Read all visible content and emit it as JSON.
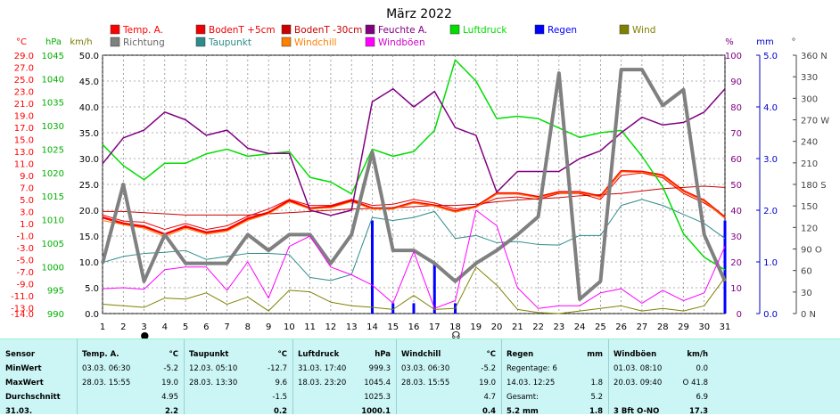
{
  "chart_data": {
    "type": "line",
    "title": "März 2022",
    "x": [
      1,
      2,
      3,
      4,
      5,
      6,
      7,
      8,
      9,
      10,
      11,
      12,
      13,
      14,
      15,
      16,
      17,
      18,
      19,
      20,
      21,
      22,
      23,
      24,
      25,
      26,
      27,
      28,
      29,
      30,
      31
    ],
    "x_range": [
      1,
      31
    ],
    "grid": true,
    "axes": {
      "temp": {
        "label": "°C",
        "range": [
          -14,
          29
        ],
        "ticks": [
          "29.0",
          "27.0",
          "25.0",
          "23.0",
          "21.0",
          "19.0",
          "17.0",
          "15.0",
          "13.0",
          "11.0",
          "9.0",
          "7.0",
          "5.0",
          "3.0",
          "1.0",
          "-1.0",
          "-3.0",
          "-5.0",
          "-7.0",
          "-9.0",
          "-11.0",
          "-13.0",
          "-14.0"
        ],
        "color": "#ff0000"
      },
      "pressure": {
        "label": "hPa",
        "range": [
          990,
          1045
        ],
        "ticks": [
          "1045",
          "1040",
          "1035",
          "1030",
          "1025",
          "1020",
          "1015",
          "1010",
          "1005",
          "1000",
          "995",
          "990"
        ],
        "color": "#00b000"
      },
      "wind": {
        "label": "km/h",
        "range": [
          0,
          50
        ],
        "ticks": [
          "50.0",
          "45.0",
          "40.0",
          "35.0",
          "30.0",
          "25.0",
          "20.0",
          "15.0",
          "10.0",
          "5.0",
          "0.0"
        ],
        "color": "#7a7a00"
      },
      "humidity": {
        "label": "%",
        "range": [
          0,
          100
        ],
        "ticks": [
          "100",
          "90",
          "80",
          "70",
          "60",
          "50",
          "40",
          "30",
          "20",
          "10",
          "0"
        ],
        "color": "#800080"
      },
      "rain": {
        "label": "mm",
        "range": [
          0,
          5
        ],
        "ticks": [
          "5.0",
          "4.0",
          "3.0",
          "2.0",
          "1.0",
          "0.0"
        ],
        "color": "#0000cc"
      },
      "direction": {
        "label": "°",
        "range": [
          0,
          360
        ],
        "ticks": [
          "360 N",
          "330",
          "300",
          "270 W",
          "240",
          "210",
          "180 S",
          "150",
          "120",
          "90 O",
          "60",
          "30",
          "0 N"
        ],
        "color": "#444444"
      }
    },
    "legend": [
      {
        "name": "Temp. A.",
        "color": "#ff0000"
      },
      {
        "name": "Richtung",
        "color": "#808080"
      },
      {
        "name": "BodenT +5cm",
        "color": "#ee0000"
      },
      {
        "name": "Taupunkt",
        "color": "#2e8b8b"
      },
      {
        "name": "BodenT -30cm",
        "color": "#cc0000"
      },
      {
        "name": "Windchill",
        "color": "#ff8000"
      },
      {
        "name": "Feuchte A.",
        "color": "#800080"
      },
      {
        "name": "Windböen",
        "color": "#ff00ff"
      },
      {
        "name": "Luftdruck",
        "color": "#00dd00"
      },
      {
        "name": "Regen",
        "color": "#0000ff"
      },
      {
        "name": "Wind",
        "color": "#808000"
      }
    ],
    "series": [
      {
        "name": "Temp. A.",
        "axis": "temp",
        "color": "#ff0000",
        "width": 2.5,
        "values": [
          2.0,
          1.0,
          0.5,
          -0.8,
          0.5,
          -0.5,
          0.0,
          1.8,
          2.8,
          4.8,
          3.5,
          3.8,
          4.8,
          3.5,
          3.5,
          4.5,
          4.0,
          3.0,
          3.8,
          6.0,
          6.0,
          5.4,
          6.2,
          6.2,
          5.5,
          9.7,
          9.6,
          9.0,
          6.4,
          4.8,
          2.0
        ]
      },
      {
        "name": "BodenT +5cm",
        "axis": "temp",
        "color": "#ee0000",
        "width": 1,
        "values": [
          2.4,
          1.4,
          1.2,
          0.0,
          1.0,
          0.0,
          0.6,
          2.2,
          3.4,
          5.0,
          4.0,
          4.0,
          5.0,
          4.0,
          4.2,
          5.0,
          4.4,
          3.4,
          3.8,
          5.2,
          5.4,
          5.0,
          6.0,
          6.0,
          5.0,
          9.0,
          9.4,
          8.6,
          6.0,
          4.4,
          2.2
        ]
      },
      {
        "name": "BodenT -30cm",
        "axis": "temp",
        "color": "#cc0000",
        "width": 1,
        "values": [
          3.0,
          3.0,
          2.8,
          2.6,
          2.4,
          2.4,
          2.4,
          2.4,
          2.6,
          2.8,
          3.0,
          3.2,
          3.4,
          3.5,
          3.6,
          3.8,
          4.0,
          4.0,
          4.2,
          4.6,
          4.9,
          5.1,
          5.3,
          5.6,
          5.8,
          6.0,
          6.4,
          6.8,
          7.0,
          7.2,
          7.0
        ]
      },
      {
        "name": "Taupunkt",
        "axis": "temp",
        "color": "#2e8b8b",
        "width": 1,
        "values": [
          -5.5,
          -4.5,
          -4.0,
          -3.8,
          -3.5,
          -5.0,
          -4.5,
          -4.0,
          -4.0,
          -4.2,
          -8.0,
          -8.5,
          -7.5,
          2.0,
          1.5,
          2.0,
          3.0,
          -1.5,
          -1.0,
          -2.2,
          -2.0,
          -2.5,
          -2.6,
          -1.0,
          -1.0,
          4.0,
          5.0,
          4.0,
          2.5,
          1.0,
          -1.5
        ]
      },
      {
        "name": "Windchill",
        "axis": "temp",
        "color": "#ff8000",
        "width": 1,
        "values": [
          1.5,
          0.8,
          0.2,
          -1.2,
          0.2,
          -0.8,
          -0.3,
          1.5,
          2.6,
          4.6,
          3.4,
          3.6,
          4.6,
          3.4,
          3.4,
          4.4,
          3.9,
          2.9,
          3.7,
          5.9,
          5.9,
          5.3,
          6.1,
          6.1,
          5.4,
          9.6,
          9.5,
          8.9,
          6.3,
          4.7,
          1.9
        ]
      },
      {
        "name": "Luftdruck",
        "axis": "pressure",
        "color": "#00dd00",
        "width": 1.5,
        "values": [
          1026,
          1021.5,
          1018.5,
          1022,
          1022,
          1024,
          1025,
          1023.5,
          1024,
          1024.5,
          1019,
          1018,
          1015.5,
          1025,
          1023.5,
          1024.5,
          1029,
          1044,
          1039.5,
          1031.5,
          1032,
          1031.5,
          1029.5,
          1027.5,
          1028.5,
          1029,
          1023.5,
          1017,
          1007,
          1002,
          999.3
        ]
      },
      {
        "name": "Feuchte A.",
        "axis": "humidity",
        "color": "#800080",
        "width": 1.5,
        "values": [
          58,
          68,
          71,
          78,
          75,
          69,
          71,
          64,
          62,
          62,
          40,
          38,
          40,
          82,
          87,
          80,
          86,
          72,
          69,
          47,
          55,
          55,
          55,
          60,
          63,
          70,
          76,
          73,
          74,
          78,
          87
        ]
      },
      {
        "name": "Richtung",
        "axis": "direction",
        "color": "#808080",
        "width": 4,
        "values": [
          70,
          180,
          45,
          110,
          70,
          70,
          70,
          110,
          88,
          110,
          110,
          70,
          110,
          225,
          88,
          88,
          70,
          45,
          70,
          88,
          110,
          135,
          335,
          20,
          45,
          340,
          340,
          290,
          312,
          110,
          45
        ]
      },
      {
        "name": "Windböen",
        "axis": "wind",
        "color": "#ff00ff",
        "width": 1,
        "values": [
          4.8,
          5.0,
          4.7,
          8.5,
          9.0,
          9.0,
          4.5,
          10.0,
          3.0,
          13.0,
          15.0,
          9.0,
          7.5,
          5.5,
          2.0,
          12.0,
          1.0,
          2.5,
          20.0,
          17.0,
          5.0,
          1.0,
          1.5,
          1.5,
          4.0,
          4.8,
          2.0,
          4.5,
          2.5,
          4.0,
          13.0
        ]
      },
      {
        "name": "Wind",
        "axis": "wind",
        "color": "#808000",
        "width": 1,
        "values": [
          1.8,
          1.5,
          1.2,
          3.0,
          2.8,
          4.0,
          1.8,
          3.2,
          0.5,
          4.5,
          4.2,
          2.2,
          1.5,
          1.2,
          0.8,
          3.5,
          0.8,
          1.0,
          9.0,
          5.5,
          0.8,
          0.2,
          0.0,
          0.5,
          1.0,
          1.5,
          0.5,
          1.0,
          0.5,
          1.5,
          7.0
        ]
      }
    ],
    "rain_bars": {
      "name": "Regen",
      "axis": "rain",
      "color": "#0000ff",
      "x": [
        14,
        15,
        16,
        17,
        18,
        31
      ],
      "values": [
        1.8,
        0.2,
        0.2,
        1.0,
        0.2,
        1.8
      ]
    },
    "markers": [
      {
        "x": 3,
        "symbol": "●"
      },
      {
        "x": 18,
        "symbol": "☊"
      }
    ]
  },
  "stats": {
    "sections": [
      {
        "header": "Sensor",
        "unit": "",
        "rows": [
          "MinWert",
          "MaxWert",
          "Durchschnitt",
          "31.03."
        ]
      },
      {
        "header": "Temp. A.",
        "unit": "°C",
        "rows": [
          [
            "03.03. 06:30",
            "-5.2"
          ],
          [
            "28.03. 15:55",
            "19.0"
          ],
          [
            "",
            "4.95"
          ],
          [
            "",
            "2.2"
          ]
        ]
      },
      {
        "header": "Taupunkt",
        "unit": "°C",
        "rows": [
          [
            "12.03. 05:10",
            "-12.7"
          ],
          [
            "28.03. 13:30",
            "9.6"
          ],
          [
            "",
            "-1.5"
          ],
          [
            "",
            "0.2"
          ]
        ]
      },
      {
        "header": "Luftdruck",
        "unit": "hPa",
        "rows": [
          [
            "31.03. 17:40",
            "999.3"
          ],
          [
            "18.03. 23:20",
            "1045.4"
          ],
          [
            "",
            "1025.3"
          ],
          [
            "",
            "1000.1"
          ]
        ]
      },
      {
        "header": "Windchill",
        "unit": "°C",
        "rows": [
          [
            "03.03. 06:30",
            "-5.2"
          ],
          [
            "28.03. 15:55",
            "19.0"
          ],
          [
            "",
            "4.7"
          ],
          [
            "",
            "0.4"
          ]
        ]
      },
      {
        "header": "Regen",
        "unit": "mm",
        "rows": [
          [
            "Regentage: 6",
            ""
          ],
          [
            "14.03. 12:25",
            "1.8"
          ],
          [
            "Gesamt:",
            "5.2"
          ],
          [
            "5.2 mm",
            "1.8"
          ]
        ]
      },
      {
        "header": "Windböen",
        "unit": "km/h",
        "rows": [
          [
            "01.03. 08:10",
            "0.0"
          ],
          [
            "20.03. 09:40",
            "O 41.8"
          ],
          [
            "",
            "6.9"
          ],
          [
            "3 Bft O-NO",
            "17.3"
          ]
        ]
      }
    ]
  }
}
